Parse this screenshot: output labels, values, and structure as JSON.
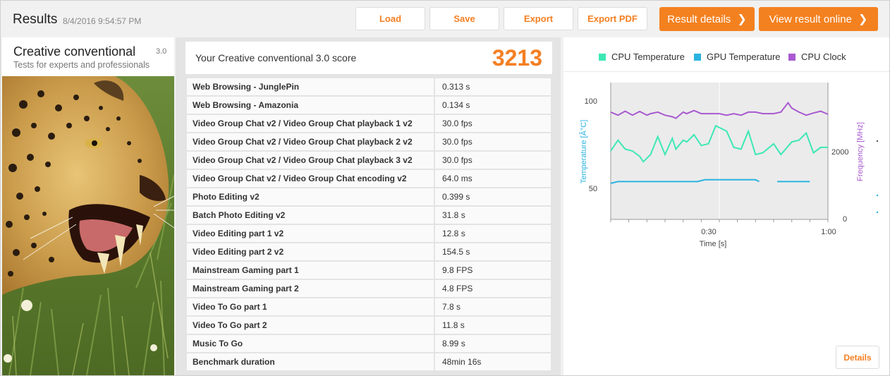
{
  "header": {
    "title": "Results",
    "date": "8/4/2016 9:54:57 PM",
    "buttons": {
      "load": "Load",
      "save": "Save",
      "export": "Export",
      "export_pdf": "Export PDF",
      "result_details": "Result details",
      "view_online": "View result online"
    },
    "accent_color": "#f47f22"
  },
  "test": {
    "name": "Creative conventional",
    "version": "3.0",
    "subtitle": "Tests for experts and professionals"
  },
  "score": {
    "label": "Your Creative conventional 3.0 score",
    "value": "3213"
  },
  "results": [
    {
      "name": "Web Browsing - JunglePin",
      "value": "0.313 s"
    },
    {
      "name": "Web Browsing - Amazonia",
      "value": "0.134 s"
    },
    {
      "name": "Video Group Chat v2 / Video Group Chat playback 1 v2",
      "value": "30.0 fps"
    },
    {
      "name": "Video Group Chat v2 / Video Group Chat playback 2 v2",
      "value": "30.0 fps"
    },
    {
      "name": "Video Group Chat v2 / Video Group Chat playback 3 v2",
      "value": "30.0 fps"
    },
    {
      "name": "Video Group Chat v2 / Video Group Chat encoding v2",
      "value": "64.0 ms"
    },
    {
      "name": "Photo Editing v2",
      "value": "0.399 s"
    },
    {
      "name": "Batch Photo Editing v2",
      "value": "31.8 s"
    },
    {
      "name": "Video Editing part 1 v2",
      "value": "12.8 s"
    },
    {
      "name": "Video Editing part 2 v2",
      "value": "154.5 s"
    },
    {
      "name": "Mainstream Gaming part 1",
      "value": "9.8 FPS"
    },
    {
      "name": "Mainstream Gaming part 2",
      "value": "4.8 FPS"
    },
    {
      "name": "Video To Go part 1",
      "value": "7.8 s"
    },
    {
      "name": "Video To Go part 2",
      "value": "11.8 s"
    },
    {
      "name": "Music To Go",
      "value": "8.99 s"
    },
    {
      "name": "Benchmark duration",
      "value": "48min 16s"
    }
  ],
  "chart_data": {
    "type": "line",
    "legend": [
      "CPU Temperature",
      "GPU Temperature",
      "CPU Clock"
    ],
    "colors": {
      "cpu_temp": "#3de8b5",
      "gpu_temp": "#2ab3e0",
      "cpu_clock": "#a85ad0"
    },
    "xlabel": "Time [s]",
    "ylabel_left": "Temperature [Â°C]",
    "ylabel_right": "Frequency [MHz]",
    "x_ticks": [
      "0:30",
      "1:00"
    ],
    "y_left_ticks": [
      "100",
      "50"
    ],
    "y_right_ticks": [
      "2000",
      "0"
    ],
    "xlim": [
      0,
      60
    ],
    "ylim_left": [
      34,
      110
    ],
    "ylim_right": [
      0,
      4400
    ],
    "series": [
      {
        "name": "CPU Temperature",
        "axis": "left",
        "x": [
          0,
          2,
          4,
          6,
          8,
          9,
          11,
          13,
          15,
          17,
          18,
          20,
          21,
          23,
          25,
          27,
          29,
          32,
          34,
          36,
          38,
          40,
          42,
          45,
          47,
          50,
          52,
          54,
          56,
          58,
          60
        ],
        "y": [
          72,
          78,
          73,
          72,
          69,
          66,
          70,
          80,
          70,
          79,
          73,
          78,
          77,
          81,
          75,
          76,
          86,
          83,
          74,
          73,
          83,
          70,
          71,
          76,
          70,
          77,
          78,
          82,
          71,
          74,
          74
        ]
      },
      {
        "name": "GPU Temperature",
        "axis": "left",
        "x": [
          0,
          2,
          5,
          10,
          15,
          20,
          24,
          26,
          30,
          35,
          40,
          41
        ],
        "y": [
          54,
          55,
          55,
          55,
          55,
          55,
          55,
          56,
          56,
          56,
          56,
          55
        ]
      },
      {
        "name": "GPU Temperature (segment)",
        "axis": "left",
        "x": [
          46,
          50,
          55
        ],
        "y": [
          55,
          55,
          55
        ]
      },
      {
        "name": "CPU Clock",
        "axis": "right",
        "x": [
          0,
          2,
          4,
          6,
          8,
          10,
          11,
          13,
          15,
          17,
          18,
          20,
          21,
          23,
          25,
          28,
          30,
          32,
          34,
          36,
          38,
          40,
          42,
          45,
          47,
          49,
          50,
          52,
          54,
          56,
          58,
          60
        ],
        "y": [
          3450,
          3350,
          3480,
          3350,
          3470,
          3350,
          3400,
          3450,
          3350,
          3300,
          3250,
          3450,
          3400,
          3500,
          3400,
          3400,
          3400,
          3350,
          3400,
          3350,
          3450,
          3450,
          3400,
          3400,
          3450,
          3750,
          3580,
          3450,
          3350,
          3420,
          3480,
          3380
        ]
      }
    ]
  },
  "panel_buttons": {
    "details": "Details"
  }
}
